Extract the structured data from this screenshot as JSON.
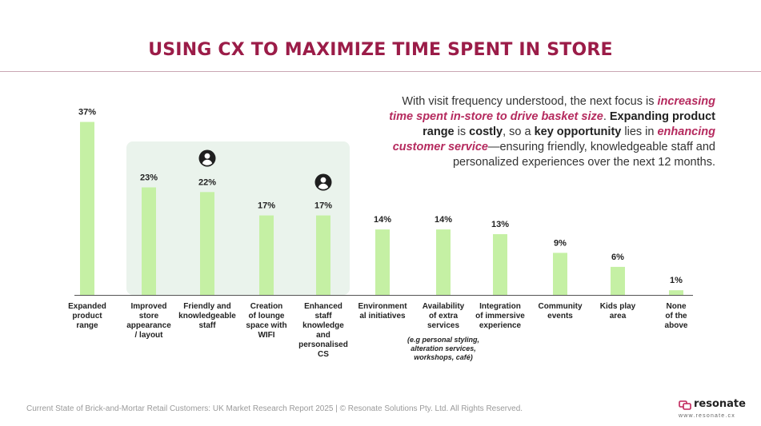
{
  "title": "USING CX TO MAXIMIZE TIME SPENT IN STORE",
  "callout": {
    "p1": "With visit frequency understood, the next focus is ",
    "em1": "increasing time spent in-store to drive basket size",
    "p2": ". ",
    "b1": "Expanding product range",
    "p3": " is ",
    "b2": "costly",
    "p4": ", so a ",
    "b3": "key opportunity",
    "p5": " lies in ",
    "em2": "enhancing customer service",
    "p6": "—ensuring friendly, knowledgeable staff and personalized experiences over the next 12 months."
  },
  "chart_data": {
    "type": "bar",
    "categories": [
      "Expanded product range",
      "Improved store appearance / layout",
      "Friendly and knowledgeable staff",
      "Creation of lounge space with WIFI",
      "Enhanced staff knowledge and personalised CS",
      "Environmental initiatives",
      "Availability of extra services",
      "Integration of immersive experience",
      "Community events",
      "Kids play area",
      "None of the above"
    ],
    "category_lines": [
      [
        "Expanded",
        "product",
        "range"
      ],
      [
        "Improved",
        "store",
        "appearance",
        "/ layout"
      ],
      [
        "Friendly and",
        "knowledgeable",
        "staff"
      ],
      [
        "Creation",
        "of lounge",
        "space with",
        "WIFI"
      ],
      [
        "Enhanced",
        "staff",
        "knowledge",
        "and",
        "personalised",
        "CS"
      ],
      [
        "Environment",
        "al initiatives"
      ],
      [
        "Availability",
        "of extra",
        "services"
      ],
      [
        "Integration",
        "of immersive",
        "experience"
      ],
      [
        "Community",
        "events"
      ],
      [
        "Kids play",
        "area"
      ],
      [
        "None",
        "of the",
        "above"
      ]
    ],
    "values": [
      37,
      23,
      22,
      17,
      17,
      14,
      14,
      13,
      9,
      6,
      1
    ],
    "value_labels": [
      "37%",
      "23%",
      "22%",
      "17%",
      "17%",
      "14%",
      "14%",
      "13%",
      "9%",
      "6%",
      "1%"
    ],
    "category_note": [
      "(e.g personal styling,",
      "alteration services,",
      "workshops, café)"
    ],
    "highlighted_categories": [
      "Improved store appearance / layout",
      "Friendly and knowledgeable staff",
      "Creation of lounge space with WIFI",
      "Enhanced staff knowledge and personalised CS"
    ],
    "person_icon_categories": [
      "Friendly and knowledgeable staff",
      "Enhanced staff knowledge and personalised CS"
    ],
    "ylim": [
      0,
      40
    ],
    "bar_color": "#c5f0a4",
    "highlight_color": "#eaf3ec",
    "title": "",
    "xlabel": "",
    "ylabel": "",
    "grid": false
  },
  "footer": "Current State of Brick-and-Mortar Retail Customers: UK Market Research Report 2025 | © Resonate Solutions Pty. Ltd. All Rights Reserved.",
  "logo": {
    "name": "resonate",
    "url": "www.resonate.cx"
  },
  "colors": {
    "title": "#9b1c48",
    "emphasis": "#b52a5e"
  }
}
